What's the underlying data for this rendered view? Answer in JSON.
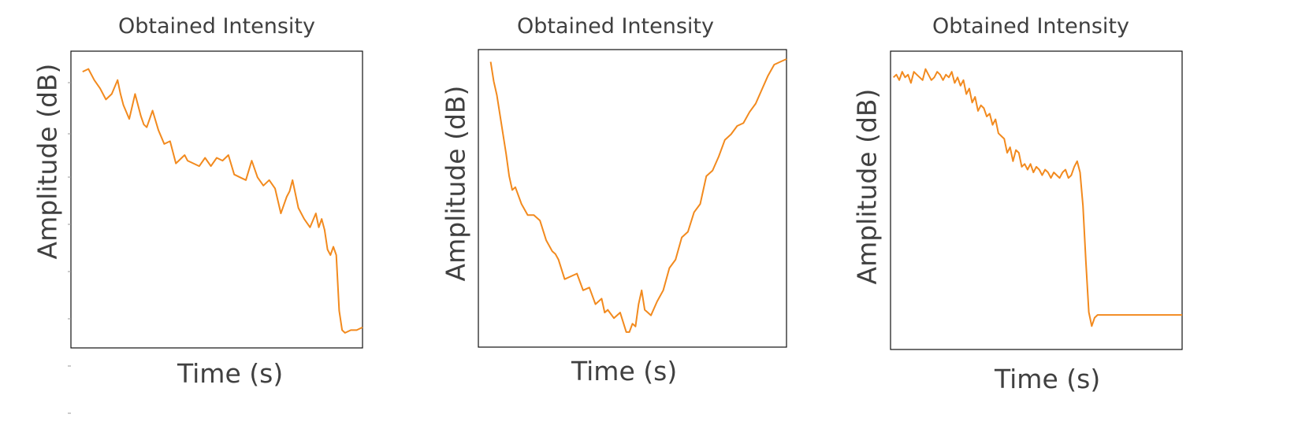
{
  "colors": {
    "line": "#F28A1E",
    "axes": "#111111",
    "text": "#404040"
  },
  "chart_data": [
    {
      "type": "line",
      "title": "Obtained Intensity",
      "xlabel": "Time (s)",
      "ylabel": "Amplitude (dB)",
      "grid": false,
      "xlim": [
        0,
        1
      ],
      "ylim": [
        0,
        1
      ],
      "series": [
        {
          "x": [
            0.04,
            0.06,
            0.08,
            0.1,
            0.12,
            0.14,
            0.16,
            0.17,
            0.18,
            0.2,
            0.22,
            0.24,
            0.25,
            0.26,
            0.28,
            0.3,
            0.32,
            0.34,
            0.36,
            0.38,
            0.39,
            0.4,
            0.42,
            0.44,
            0.46,
            0.48,
            0.5,
            0.52,
            0.54,
            0.56,
            0.58,
            0.6,
            0.62,
            0.64,
            0.66,
            0.68,
            0.7,
            0.72,
            0.74,
            0.75,
            0.76,
            0.78,
            0.8,
            0.82,
            0.84,
            0.85,
            0.86,
            0.87,
            0.88,
            0.89,
            0.9,
            0.91,
            0.92,
            0.93,
            0.94,
            0.96,
            0.98,
            1.0
          ],
          "values": [
            0.96,
            0.97,
            0.93,
            0.9,
            0.86,
            0.88,
            0.93,
            0.88,
            0.84,
            0.79,
            0.88,
            0.8,
            0.77,
            0.76,
            0.82,
            0.75,
            0.7,
            0.71,
            0.63,
            0.65,
            0.66,
            0.64,
            0.63,
            0.62,
            0.65,
            0.62,
            0.65,
            0.64,
            0.66,
            0.59,
            0.58,
            0.57,
            0.64,
            0.58,
            0.55,
            0.57,
            0.54,
            0.45,
            0.51,
            0.53,
            0.57,
            0.47,
            0.43,
            0.4,
            0.45,
            0.4,
            0.43,
            0.39,
            0.32,
            0.3,
            0.33,
            0.3,
            0.1,
            0.03,
            0.02,
            0.03,
            0.03,
            0.04
          ]
        }
      ]
    },
    {
      "type": "line",
      "title": "Obtained Intensity",
      "xlabel": "Time (s)",
      "ylabel": "Amplitude (dB)",
      "grid": false,
      "xlim": [
        0,
        1
      ],
      "ylim": [
        0,
        1
      ],
      "series": [
        {
          "x": [
            0.04,
            0.05,
            0.06,
            0.07,
            0.08,
            0.09,
            0.1,
            0.11,
            0.12,
            0.14,
            0.16,
            0.18,
            0.2,
            0.22,
            0.24,
            0.25,
            0.26,
            0.28,
            0.3,
            0.32,
            0.34,
            0.36,
            0.38,
            0.4,
            0.41,
            0.42,
            0.44,
            0.46,
            0.48,
            0.49,
            0.5,
            0.51,
            0.52,
            0.53,
            0.54,
            0.55,
            0.56,
            0.58,
            0.6,
            0.62,
            0.64,
            0.66,
            0.68,
            0.7,
            0.72,
            0.74,
            0.76,
            0.78,
            0.8,
            0.82,
            0.84,
            0.86,
            0.88,
            0.9,
            0.92,
            0.94,
            0.96,
            0.98,
            1.0
          ],
          "values": [
            0.99,
            0.92,
            0.87,
            0.8,
            0.73,
            0.66,
            0.58,
            0.53,
            0.54,
            0.48,
            0.44,
            0.44,
            0.42,
            0.35,
            0.31,
            0.3,
            0.28,
            0.21,
            0.22,
            0.23,
            0.17,
            0.18,
            0.12,
            0.14,
            0.09,
            0.1,
            0.07,
            0.09,
            0.02,
            0.02,
            0.05,
            0.04,
            0.12,
            0.17,
            0.1,
            0.09,
            0.08,
            0.13,
            0.17,
            0.25,
            0.28,
            0.36,
            0.38,
            0.45,
            0.48,
            0.58,
            0.6,
            0.65,
            0.71,
            0.73,
            0.76,
            0.77,
            0.81,
            0.84,
            0.89,
            0.94,
            0.98,
            0.99,
            1.0
          ]
        }
      ]
    },
    {
      "type": "line",
      "title": "Obtained Intensity",
      "xlabel": "Time (s)",
      "ylabel": "Amplitude (dB)",
      "grid": false,
      "xlim": [
        0,
        1
      ],
      "ylim": [
        0,
        1
      ],
      "series": [
        {
          "x": [
            0.01,
            0.02,
            0.03,
            0.04,
            0.05,
            0.06,
            0.07,
            0.08,
            0.09,
            0.1,
            0.11,
            0.12,
            0.13,
            0.14,
            0.15,
            0.16,
            0.17,
            0.18,
            0.19,
            0.2,
            0.21,
            0.22,
            0.23,
            0.24,
            0.25,
            0.26,
            0.27,
            0.28,
            0.29,
            0.3,
            0.31,
            0.32,
            0.33,
            0.34,
            0.35,
            0.36,
            0.37,
            0.38,
            0.39,
            0.4,
            0.41,
            0.42,
            0.43,
            0.44,
            0.45,
            0.46,
            0.47,
            0.48,
            0.49,
            0.5,
            0.51,
            0.52,
            0.53,
            0.54,
            0.55,
            0.56,
            0.57,
            0.58,
            0.59,
            0.6,
            0.61,
            0.62,
            0.63,
            0.64,
            0.65,
            0.66,
            0.67,
            0.68,
            0.69,
            0.7,
            0.71,
            0.72,
            0.73,
            0.74,
            0.75,
            0.76,
            0.77,
            0.78,
            0.79,
            0.8,
            0.82,
            0.84,
            0.86,
            0.88,
            0.9,
            0.92,
            0.94,
            0.96,
            0.98,
            1.0
          ],
          "values": [
            0.94,
            0.95,
            0.93,
            0.96,
            0.94,
            0.95,
            0.92,
            0.96,
            0.95,
            0.94,
            0.93,
            0.97,
            0.95,
            0.93,
            0.94,
            0.96,
            0.95,
            0.93,
            0.95,
            0.94,
            0.96,
            0.92,
            0.94,
            0.91,
            0.93,
            0.88,
            0.9,
            0.85,
            0.87,
            0.82,
            0.84,
            0.83,
            0.8,
            0.81,
            0.77,
            0.79,
            0.74,
            0.73,
            0.72,
            0.67,
            0.69,
            0.64,
            0.68,
            0.67,
            0.62,
            0.63,
            0.61,
            0.63,
            0.6,
            0.62,
            0.61,
            0.59,
            0.61,
            0.6,
            0.58,
            0.6,
            0.59,
            0.58,
            0.6,
            0.61,
            0.58,
            0.59,
            0.62,
            0.64,
            0.6,
            0.48,
            0.28,
            0.1,
            0.05,
            0.08,
            0.09,
            0.09,
            0.09,
            0.09,
            0.09,
            0.09,
            0.09,
            0.09,
            0.09,
            0.09,
            0.09,
            0.09,
            0.09,
            0.09,
            0.09,
            0.09,
            0.09,
            0.09,
            0.09,
            0.09
          ]
        }
      ]
    }
  ]
}
